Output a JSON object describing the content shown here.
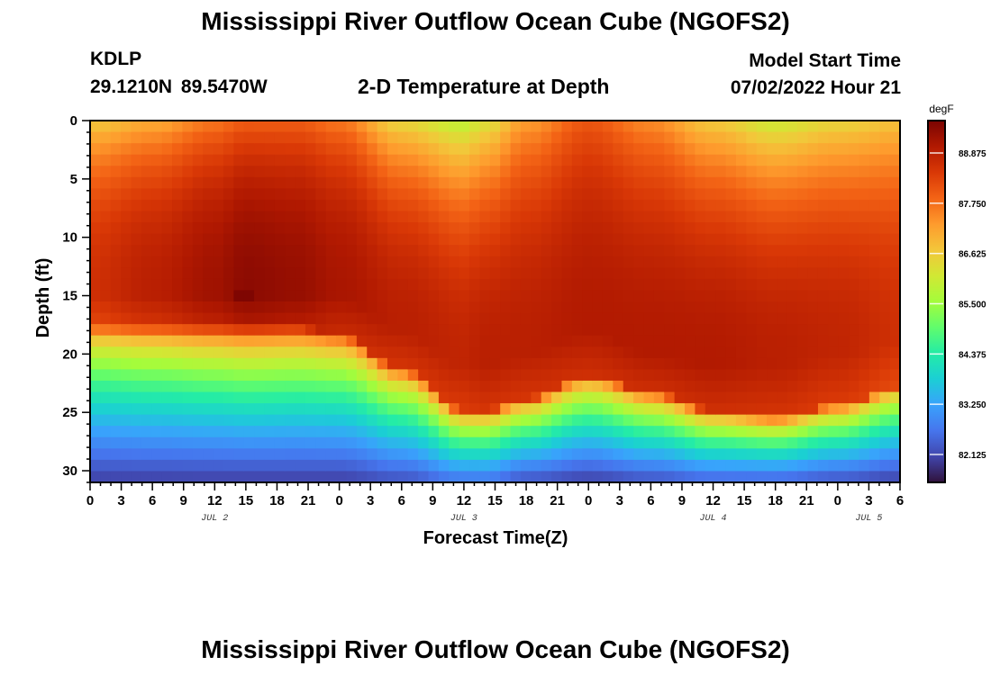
{
  "header": {
    "title": "Mississippi River Outflow Ocean Cube (NGOFS2)",
    "station_id": "KDLP",
    "station_coords": "29.1210N  89.5470W",
    "subtitle": "2-D Temperature at Depth",
    "model_start_label": "Model Start Time",
    "model_start_value": "07/02/2022 Hour 21"
  },
  "footer": {
    "title": "Mississippi River Outflow Ocean Cube (NGOFS2)"
  },
  "chart_data": {
    "type": "heatmap",
    "title": "2-D Temperature at Depth",
    "xlabel": "Forecast Time(Z)",
    "ylabel": "Depth (ft)",
    "x_hours": [
      0,
      78
    ],
    "x_tick_labels": [
      "0",
      "3",
      "6",
      "9",
      "12",
      "15",
      "18",
      "21",
      "0",
      "3",
      "6",
      "9",
      "12",
      "15",
      "18",
      "21",
      "0",
      "3",
      "6",
      "9",
      "12",
      "15",
      "18",
      "21",
      "0",
      "3",
      "6"
    ],
    "day_labels": [
      {
        "hour": 12,
        "label": "JUL 2"
      },
      {
        "hour": 36,
        "label": "JUL 3"
      },
      {
        "hour": 60,
        "label": "JUL 4"
      },
      {
        "hour": 75,
        "label": "JUL 5"
      }
    ],
    "y_range": [
      0,
      31
    ],
    "y_reversed": true,
    "y_ticks": [
      0,
      5,
      10,
      15,
      20,
      25,
      30
    ],
    "colorbar": {
      "unit": "degF",
      "range": [
        81.5,
        89.6
      ],
      "tick_labels": [
        "88.875",
        "87.750",
        "86.625",
        "85.500",
        "84.375",
        "83.250",
        "82.125"
      ],
      "colormap": [
        "#30123b",
        "#4145ab",
        "#4675ed",
        "#39a2fc",
        "#1bcfd4",
        "#24eca6",
        "#61fc6c",
        "#a4fc3b",
        "#d1e834",
        "#f3c63a",
        "#fe9b2d",
        "#f36315",
        "#d93806",
        "#b11901",
        "#7a0402"
      ]
    },
    "grid": {
      "nx": 79,
      "ny": 32,
      "hot_spot_note": "",
      "control_times": [
        0,
        6,
        12,
        15,
        20,
        24,
        30,
        36,
        38,
        42,
        48,
        54,
        60,
        66,
        72,
        78
      ],
      "surface_temp": [
        86.6,
        87.0,
        87.6,
        87.9,
        87.9,
        87.6,
        86.4,
        85.8,
        86.2,
        87.2,
        88.0,
        87.4,
        86.6,
        86.0,
        86.4,
        86.7
      ],
      "core_temp": [
        88.6,
        88.9,
        89.2,
        89.4,
        89.3,
        89.1,
        88.9,
        88.8,
        88.9,
        88.9,
        89.0,
        89.0,
        89.0,
        88.9,
        88.8,
        88.6
      ],
      "core_depth": [
        15,
        15,
        15,
        15,
        15,
        15,
        18,
        21,
        21,
        20,
        18,
        20,
        21,
        21,
        20,
        19
      ],
      "core_halfwidth": [
        5,
        5,
        5,
        5,
        5,
        6,
        7,
        4,
        4,
        6,
        7,
        8,
        9,
        9,
        8,
        7
      ],
      "bottom_temp": [
        82.0,
        82.0,
        82.0,
        82.0,
        82.0,
        82.0,
        82.2,
        82.6,
        82.6,
        82.2,
        82.0,
        82.2,
        82.4,
        82.4,
        82.2,
        82.0
      ],
      "bottom_depth": [
        20,
        20,
        20,
        20,
        20,
        21,
        24,
        28,
        28,
        27,
        25,
        26,
        28,
        29,
        28,
        26
      ]
    }
  }
}
